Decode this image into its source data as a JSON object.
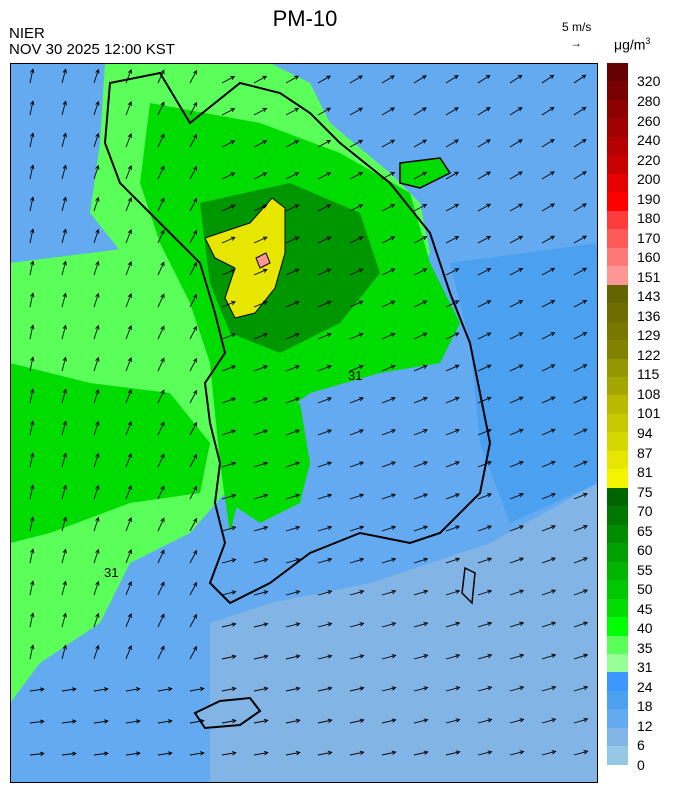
{
  "header": {
    "title": "PM-10",
    "organization": "NIER",
    "datetime": "NOV 30 2025 12:00 KST",
    "wind_scale_label": "5 m/s",
    "wind_scale_arrow": "→",
    "unit_base": "μg/m",
    "unit_exp": "3"
  },
  "colorbar": {
    "labels": [
      "320",
      "280",
      "260",
      "240",
      "220",
      "200",
      "190",
      "180",
      "170",
      "160",
      "151",
      "143",
      "136",
      "129",
      "122",
      "115",
      "108",
      "101",
      "94",
      "87",
      "81",
      "75",
      "70",
      "65",
      "60",
      "55",
      "50",
      "45",
      "40",
      "35",
      "31",
      "24",
      "18",
      "12",
      "6",
      "0"
    ],
    "colors": [
      "#640000",
      "#780000",
      "#8c0000",
      "#a00000",
      "#b40000",
      "#c80000",
      "#e60000",
      "#ff0000",
      "#ff3c3c",
      "#ff5a5a",
      "#ff7878",
      "#ff9696",
      "#646400",
      "#6e6e00",
      "#787800",
      "#828200",
      "#969600",
      "#a5a500",
      "#b9b900",
      "#c8c800",
      "#d7d700",
      "#e6e600",
      "#f5f500",
      "#006400",
      "#007800",
      "#008c00",
      "#00a000",
      "#00b400",
      "#00c800",
      "#00dc00",
      "#00ff00",
      "#5aff5a",
      "#96ff96",
      "#3c96ff",
      "#4ba0f0",
      "#64aaf0",
      "#82b4e6",
      "#96c8e6"
    ]
  },
  "map": {
    "contour_labels": [
      "31",
      "31"
    ],
    "colors": {
      "sea_south": "#82b4e6",
      "sea_mid": "#64aaf0",
      "sea_dark": "#4ba0f0",
      "green_light": "#5aff5a",
      "green": "#00dc00",
      "green_dark": "#009600",
      "yellow": "#e6e600",
      "pink": "#ff9696",
      "coast": "#000000"
    }
  }
}
